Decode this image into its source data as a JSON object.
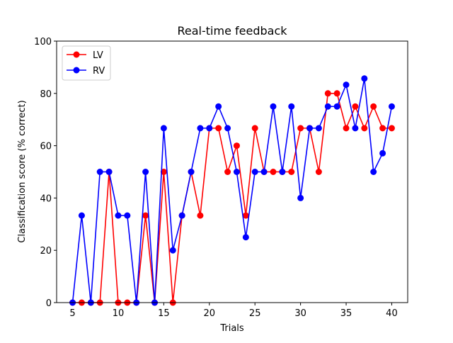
{
  "chart_data": {
    "type": "line",
    "title": "Real-time feedback",
    "xlabel": "Trials",
    "ylabel": "Classification score (% correct)",
    "xlim": [
      3.25,
      41.75
    ],
    "ylim": [
      0,
      100
    ],
    "xticks": [
      5,
      10,
      15,
      20,
      25,
      30,
      35,
      40
    ],
    "yticks": [
      0,
      20,
      40,
      60,
      80,
      100
    ],
    "grid": false,
    "legend_position": "top-left",
    "x": [
      5,
      6,
      7,
      8,
      9,
      10,
      11,
      12,
      13,
      14,
      15,
      16,
      17,
      18,
      19,
      20,
      21,
      22,
      23,
      24,
      25,
      26,
      27,
      28,
      29,
      30,
      31,
      32,
      33,
      34,
      35,
      36,
      37,
      38,
      39,
      40
    ],
    "series": [
      {
        "name": "LV",
        "color": "#ff0000",
        "values": [
          0,
          0,
          0,
          0,
          50,
          0,
          0,
          0,
          33.3,
          0,
          50,
          0,
          33.3,
          50,
          33.3,
          66.7,
          66.7,
          50,
          60,
          33.3,
          66.7,
          50,
          50,
          50,
          50,
          66.7,
          66.7,
          50,
          80,
          80,
          66.7,
          75,
          66.7,
          75,
          66.7,
          66.7
        ]
      },
      {
        "name": "RV",
        "color": "#0000ff",
        "values": [
          0,
          33.3,
          0,
          50,
          50,
          33.3,
          33.3,
          0,
          50,
          0,
          66.7,
          20,
          33.3,
          50,
          66.7,
          66.7,
          75,
          66.7,
          50,
          25,
          50,
          50,
          75,
          50,
          75,
          40,
          66.7,
          66.7,
          75,
          75,
          83.3,
          66.7,
          85.7,
          50,
          57.1,
          75
        ]
      }
    ]
  }
}
